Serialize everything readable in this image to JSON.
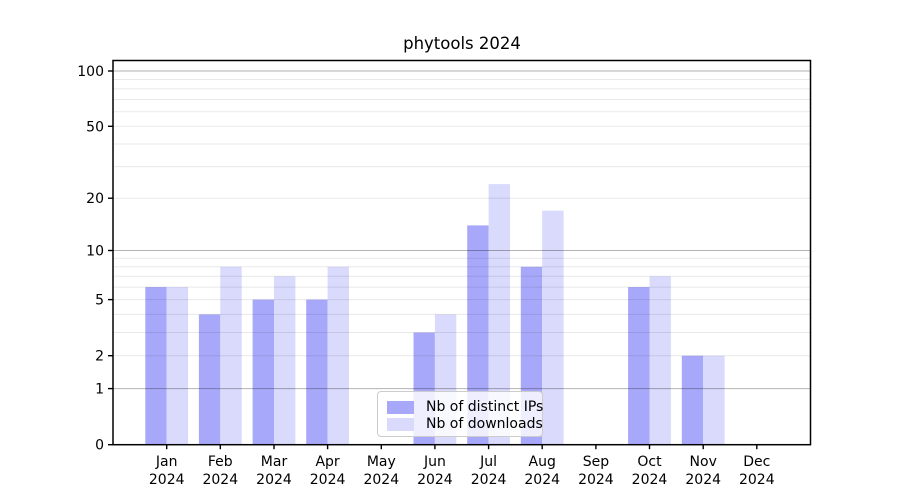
{
  "title": "phytools 2024",
  "chart_data": {
    "type": "bar",
    "title": "phytools 2024",
    "categories": [
      "Jan",
      "Feb",
      "Mar",
      "Apr",
      "May",
      "Jun",
      "Jul",
      "Aug",
      "Sep",
      "Oct",
      "Nov",
      "Dec"
    ],
    "x_sublabel": "2024",
    "series": [
      {
        "name": "Nb of distinct IPs",
        "color": "#a8a8fa",
        "values": [
          6,
          4,
          5,
          5,
          0,
          3,
          14,
          8,
          0,
          6,
          2,
          0
        ]
      },
      {
        "name": "Nb of downloads",
        "color": "#d9dafc",
        "values": [
          6,
          8,
          7,
          8,
          0,
          4,
          24,
          17,
          0,
          7,
          2,
          0
        ]
      }
    ],
    "yscale": "log1p",
    "ylim": [
      0,
      114
    ],
    "yticks": [
      0,
      1,
      2,
      5,
      10,
      20,
      50,
      100
    ],
    "major_gridlines": [
      1,
      10,
      100
    ],
    "minor_gridlines": [
      2,
      3,
      4,
      5,
      6,
      7,
      8,
      9,
      20,
      30,
      40,
      50,
      60,
      70,
      80,
      90
    ],
    "grid": true,
    "legend_position": "lower center",
    "colors": {
      "axis": "#000000",
      "major_grid": "rgba(0,0,0,0.30)",
      "minor_grid": "rgba(0,0,0,0.09)",
      "text": "#000000"
    }
  }
}
